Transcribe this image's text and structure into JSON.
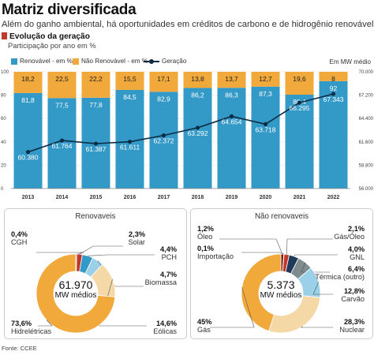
{
  "header": {
    "title": "Matriz diversificada",
    "subtitle": "Além do ganho ambiental, há oportunidades em créditos de carbono e de hidrogênio renovável",
    "section": "Evolução da geração",
    "section_sub": "Participação por ano em %"
  },
  "legend": {
    "renewable": "Renovável - em %",
    "non_renewable": "Não Renovável - em %",
    "generation": "Geração",
    "unit": "Em MW médio"
  },
  "colors": {
    "renewable": "#3399c7",
    "non_renewable": "#f2a93b",
    "line": "#0d2b45",
    "panel_bg": "#e4e4e4"
  },
  "chart_data": [
    {
      "type": "bar",
      "stacked": true,
      "categories": [
        "2013",
        "2014",
        "2015",
        "2016",
        "2017",
        "2018",
        "2019",
        "2020",
        "2021",
        "2022"
      ],
      "series": [
        {
          "name": "Renovável - em %",
          "values": [
            81.8,
            77.5,
            77.8,
            84.5,
            82.9,
            86.2,
            86.3,
            87.3,
            80.4,
            92
          ]
        },
        {
          "name": "Não Renovável - em %",
          "values": [
            18.2,
            22.5,
            22.2,
            15.5,
            17.1,
            13.8,
            13.7,
            12.7,
            19.6,
            8
          ]
        },
        {
          "name": "Geração",
          "type": "line",
          "axis": "right",
          "values": [
            60380,
            61764,
            61387,
            61611,
            62372,
            63292,
            64654,
            63718,
            66295,
            67343
          ]
        }
      ],
      "renewable_labels": [
        "81,8",
        "77,5",
        "77,8",
        "84,5",
        "82,9",
        "86,2",
        "86,3",
        "87,3",
        "80,4",
        "92"
      ],
      "non_renewable_labels": [
        "18,2",
        "22,5",
        "22,2",
        "15,5",
        "17,1",
        "13,8",
        "13,7",
        "12,7",
        "19,6",
        "8"
      ],
      "generation_labels": [
        "60.380",
        "61.764",
        "61.387",
        "61.611",
        "62.372",
        "63.292",
        "64.654",
        "63.718",
        "66.295",
        "67.343"
      ],
      "ylim_left": [
        0,
        100
      ],
      "yticks_left": [
        "100",
        "80",
        "60",
        "40",
        "20",
        "0"
      ],
      "ylim_right": [
        56000,
        70000
      ],
      "yticks_right": [
        "70.000",
        "67.200",
        "64.400",
        "61.600",
        "58.800",
        "56.000"
      ]
    },
    {
      "type": "pie",
      "title": "Renovaveis",
      "center_value": "61.970",
      "center_unit": "MW médios",
      "slices": [
        {
          "name": "CGH",
          "pct_label": "0,4%",
          "value": 0.4,
          "color": "#7a1f12"
        },
        {
          "name": "Solar",
          "pct_label": "2,3%",
          "value": 2.3,
          "color": "#c0392b"
        },
        {
          "name": "PCH",
          "pct_label": "4,4%",
          "value": 4.4,
          "color": "#3399c7"
        },
        {
          "name": "Biomassa",
          "pct_label": "4,7%",
          "value": 4.7,
          "color": "#9ad0e8"
        },
        {
          "name": "Eólicas",
          "pct_label": "14,6%",
          "value": 14.6,
          "color": "#f4d9a6"
        },
        {
          "name": "Hidrelétricas",
          "pct_label": "73,6%",
          "value": 73.6,
          "color": "#f2a93b"
        }
      ]
    },
    {
      "type": "pie",
      "title": "Não renovaveis",
      "center_value": "5.373",
      "center_unit": "MW médios",
      "slices": [
        {
          "name": "Óleo",
          "pct_label": "1,2%",
          "value": 1.2,
          "color": "#7a1f12"
        },
        {
          "name": "Importação",
          "pct_label": "0,1%",
          "value": 0.1,
          "color": "#e07b39"
        },
        {
          "name": "Gás/Óleo",
          "pct_label": "2,1%",
          "value": 2.1,
          "color": "#c0392b"
        },
        {
          "name": "GNL",
          "pct_label": "4,0%",
          "value": 4.0,
          "color": "#1f3a5a"
        },
        {
          "name": "Térmica (outro)",
          "pct_label": "6,4%",
          "value": 6.4,
          "color": "#7f8c8d"
        },
        {
          "name": "Carvão",
          "pct_label": "12,8%",
          "value": 12.8,
          "color": "#9ad0e8"
        },
        {
          "name": "Nuclear",
          "pct_label": "28,3%",
          "value": 28.3,
          "color": "#f4d9a6"
        },
        {
          "name": "Gás",
          "pct_label": "45%",
          "value": 45,
          "color": "#f2a93b"
        }
      ]
    }
  ],
  "footer": {
    "source": "Fonte: CCEE"
  }
}
